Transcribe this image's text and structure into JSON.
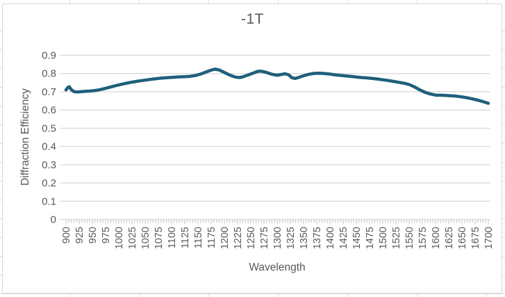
{
  "chart": {
    "title": "-1T",
    "y_axis": {
      "title": "Diffraction Efficiency",
      "tick_labels": [
        "0",
        "0.1",
        "0.2",
        "0.3",
        "0.4",
        "0.5",
        "0.6",
        "0.7",
        "0.8",
        "0.9"
      ]
    },
    "x_axis": {
      "title": "Wavelength",
      "tick_labels": [
        "900",
        "925",
        "950",
        "975",
        "1000",
        "1025",
        "1050",
        "1075",
        "1100",
        "1125",
        "1150",
        "1175",
        "1200",
        "1225",
        "1250",
        "1275",
        "1300",
        "1325",
        "1350",
        "1375",
        "1400",
        "1425",
        "1450",
        "1475",
        "1500",
        "1525",
        "1550",
        "1575",
        "1600",
        "1625",
        "1650",
        "1675",
        "1700"
      ]
    },
    "colors": {
      "series_line": "#1f5f7c",
      "gridline": "#d9d9d9",
      "tick_mark": "#bfbfbf",
      "axis_text": "#595959",
      "chart_border": "#d7d7d7",
      "sheet_gridline": "#dcdcdc"
    }
  },
  "chart_data": {
    "type": "line",
    "title": "-1T",
    "xlabel": "Wavelength",
    "ylabel": "Diffraction Efficiency",
    "ylim": [
      0,
      0.9
    ],
    "xlim": [
      900,
      1700
    ],
    "x_major_tick_step": 25,
    "x_minor_tick_step": 5,
    "grid": "horizontal",
    "legend": "none",
    "x": [
      900,
      903,
      906,
      910,
      915,
      920,
      925,
      935,
      945,
      955,
      965,
      975,
      985,
      995,
      1005,
      1015,
      1025,
      1035,
      1045,
      1055,
      1065,
      1075,
      1085,
      1095,
      1105,
      1115,
      1125,
      1135,
      1145,
      1155,
      1165,
      1175,
      1182,
      1190,
      1200,
      1210,
      1220,
      1228,
      1235,
      1245,
      1255,
      1263,
      1270,
      1280,
      1290,
      1300,
      1308,
      1315,
      1322,
      1328,
      1334,
      1340,
      1350,
      1360,
      1370,
      1380,
      1390,
      1400,
      1410,
      1420,
      1430,
      1440,
      1450,
      1460,
      1470,
      1480,
      1490,
      1500,
      1510,
      1520,
      1530,
      1540,
      1550,
      1560,
      1570,
      1580,
      1590,
      1600,
      1610,
      1620,
      1630,
      1640,
      1650,
      1660,
      1670,
      1680,
      1690,
      1700
    ],
    "series": [
      {
        "name": "-1T",
        "values": [
          0.71,
          0.722,
          0.728,
          0.712,
          0.701,
          0.699,
          0.7,
          0.702,
          0.704,
          0.707,
          0.712,
          0.719,
          0.727,
          0.734,
          0.741,
          0.747,
          0.753,
          0.758,
          0.762,
          0.766,
          0.77,
          0.773,
          0.776,
          0.778,
          0.78,
          0.782,
          0.783,
          0.785,
          0.789,
          0.797,
          0.808,
          0.819,
          0.824,
          0.82,
          0.806,
          0.792,
          0.781,
          0.778,
          0.782,
          0.792,
          0.803,
          0.812,
          0.813,
          0.806,
          0.796,
          0.791,
          0.795,
          0.799,
          0.793,
          0.777,
          0.773,
          0.778,
          0.788,
          0.796,
          0.801,
          0.802,
          0.8,
          0.797,
          0.793,
          0.79,
          0.787,
          0.784,
          0.781,
          0.778,
          0.776,
          0.773,
          0.77,
          0.766,
          0.762,
          0.757,
          0.752,
          0.747,
          0.74,
          0.727,
          0.711,
          0.697,
          0.688,
          0.682,
          0.681,
          0.68,
          0.678,
          0.676,
          0.672,
          0.667,
          0.661,
          0.654,
          0.646,
          0.637
        ]
      }
    ]
  }
}
